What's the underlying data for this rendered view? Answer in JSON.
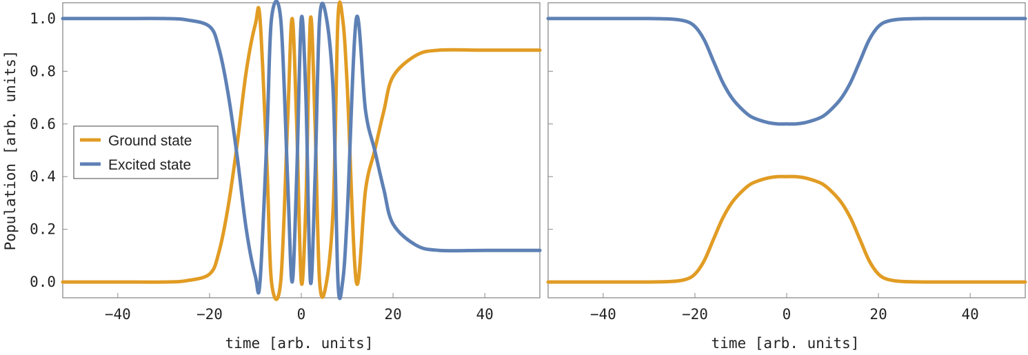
{
  "chart_data": [
    {
      "type": "line",
      "xlabel": "time [arb. units]",
      "ylabel": "Population [arb. units]",
      "xlim": [
        -52,
        52
      ],
      "ylim": [
        -0.06,
        1.06
      ],
      "xticks": [
        -40,
        -20,
        0,
        20,
        40
      ],
      "xtick_labels": [
        "-40",
        "-20",
        "0",
        "20",
        "40"
      ],
      "yticks": [
        0.0,
        0.2,
        0.4,
        0.6,
        0.8,
        1.0
      ],
      "ytick_labels": [
        "0.0",
        "0.2",
        "0.4",
        "0.6",
        "0.8",
        "1.0"
      ],
      "grid": false,
      "legend": "center-left",
      "x": [
        -52,
        -40,
        -30,
        -25,
        -20,
        -18,
        -16,
        -14,
        -12,
        -10,
        -9,
        -7.5,
        -6.5,
        -4.5,
        -3,
        -2,
        -1,
        0,
        1,
        2,
        3,
        4,
        5.5,
        7,
        8,
        9,
        10,
        12,
        14,
        16,
        18,
        20,
        25,
        30,
        40,
        52
      ],
      "series": [
        {
          "name": "Ground state",
          "color": "#e19c24",
          "values": [
            0.0,
            0.0,
            0.0,
            0.005,
            0.03,
            0.11,
            0.28,
            0.52,
            0.8,
            0.98,
            1.0,
            0.45,
            0.0,
            0.0,
            0.6,
            1.0,
            0.6,
            0.0,
            0.3,
            1.0,
            0.6,
            0.0,
            0.0,
            0.3,
            1.0,
            1.0,
            0.75,
            0.0,
            0.35,
            0.5,
            0.65,
            0.78,
            0.86,
            0.88,
            0.88,
            0.88
          ]
        },
        {
          "name": "Excited state",
          "color": "#5e81b5",
          "values": [
            1.0,
            1.0,
            1.0,
            0.995,
            0.97,
            0.89,
            0.72,
            0.48,
            0.2,
            0.02,
            0.0,
            0.55,
            1.0,
            1.0,
            0.4,
            0.0,
            0.4,
            1.0,
            0.7,
            0.0,
            0.4,
            1.0,
            1.0,
            0.7,
            0.0,
            0.0,
            0.25,
            1.0,
            0.65,
            0.5,
            0.35,
            0.22,
            0.14,
            0.12,
            0.12,
            0.12
          ]
        }
      ]
    },
    {
      "type": "line",
      "xlabel": "time [arb. units]",
      "xlim": [
        -52,
        52
      ],
      "ylim": [
        -0.06,
        1.06
      ],
      "xticks": [
        -40,
        -20,
        0,
        20,
        40
      ],
      "xtick_labels": [
        "-40",
        "-20",
        "0",
        "20",
        "40"
      ],
      "grid": false,
      "x": [
        -52,
        -40,
        -30,
        -25,
        -22,
        -20,
        -18,
        -16,
        -14,
        -12,
        -10,
        -8,
        -6,
        -4,
        -2,
        0,
        2,
        4,
        6,
        8,
        10,
        12,
        14,
        16,
        18,
        20,
        22,
        25,
        30,
        40,
        52
      ],
      "series": [
        {
          "color": "#e19c24",
          "values": [
            0.0,
            0.0,
            0.0,
            0.002,
            0.01,
            0.03,
            0.08,
            0.16,
            0.24,
            0.3,
            0.34,
            0.37,
            0.385,
            0.395,
            0.4,
            0.4,
            0.4,
            0.395,
            0.385,
            0.37,
            0.34,
            0.3,
            0.24,
            0.16,
            0.08,
            0.03,
            0.01,
            0.002,
            0.0,
            0.0,
            0.0
          ]
        },
        {
          "color": "#5e81b5",
          "values": [
            1.0,
            1.0,
            1.0,
            0.998,
            0.99,
            0.97,
            0.92,
            0.84,
            0.76,
            0.7,
            0.66,
            0.63,
            0.615,
            0.605,
            0.6,
            0.6,
            0.6,
            0.605,
            0.615,
            0.63,
            0.66,
            0.7,
            0.76,
            0.84,
            0.92,
            0.97,
            0.99,
            0.998,
            1.0,
            1.0,
            1.0
          ]
        }
      ]
    }
  ]
}
